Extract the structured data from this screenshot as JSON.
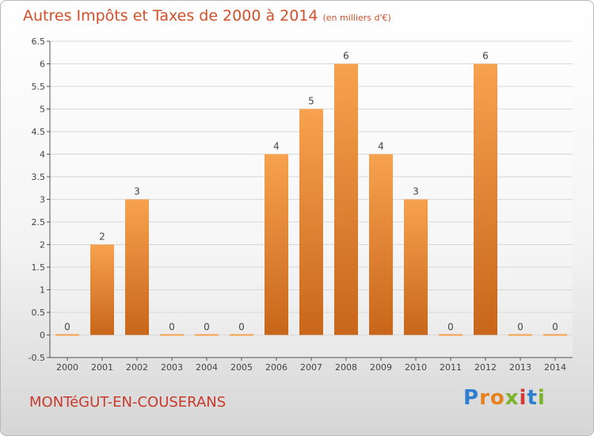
{
  "header": {
    "title": "Autres Impôts et Taxes de 2000 à 2014",
    "unit": "(en milliers d'€)"
  },
  "footer": {
    "commune": "MONTéGUT-EN-COUSERANS",
    "logo_letters": [
      "P",
      "r",
      "o",
      "x",
      "i",
      "t",
      "i"
    ]
  },
  "colors": {
    "bar_top": "#f7a24f",
    "bar_bottom": "#c8661a",
    "title": "#d2502a",
    "commune": "#c73a2c",
    "axis": "#555555"
  },
  "chart_data": {
    "type": "bar",
    "categories": [
      "2000",
      "2001",
      "2002",
      "2003",
      "2004",
      "2005",
      "2006",
      "2007",
      "2008",
      "2009",
      "2010",
      "2011",
      "2012",
      "2013",
      "2014"
    ],
    "values": [
      0,
      2,
      3,
      0,
      0,
      0,
      4,
      5,
      6,
      4,
      3,
      0,
      6,
      0,
      0
    ],
    "data_labels": [
      "0",
      "2",
      "3",
      "0",
      "0",
      "0",
      "4",
      "5",
      "6",
      "4",
      "3",
      "0",
      "6",
      "0",
      "0"
    ],
    "yticks": [
      "-0.5",
      "0",
      "0.5",
      "1",
      "1.5",
      "2",
      "2.5",
      "3",
      "3.5",
      "4",
      "4.5",
      "5",
      "5.5",
      "6",
      "6.5"
    ],
    "ytick_values": [
      -0.5,
      0,
      0.5,
      1,
      1.5,
      2,
      2.5,
      3,
      3.5,
      4,
      4.5,
      5,
      5.5,
      6,
      6.5
    ],
    "ylim": [
      -0.5,
      6.5
    ],
    "grid": true
  }
}
